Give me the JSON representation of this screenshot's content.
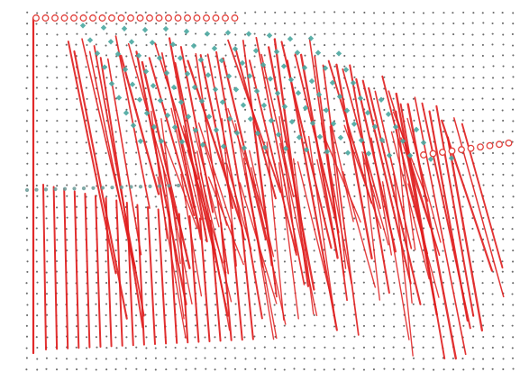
{
  "figure": {
    "kind": "vector-field-plot",
    "has_title": false,
    "has_axes": false,
    "has_legend": false,
    "colors": {
      "background": "#ffffff",
      "grid_dot": "#3a3a3a",
      "trace_line": "#e01e1e",
      "top_marker_outline": "#e0413c",
      "teal_marker": "#4aa7a0",
      "left_marker": "#6a9a96"
    },
    "elements": {
      "grid_dots": "dot-grid",
      "traces": "red-line-trace",
      "top_markers": "red-circle-marker",
      "right_markers": "red-circle-marker",
      "teal_markers": "teal-diamond-marker",
      "left_markers": "teal-dot-marker"
    }
  }
}
